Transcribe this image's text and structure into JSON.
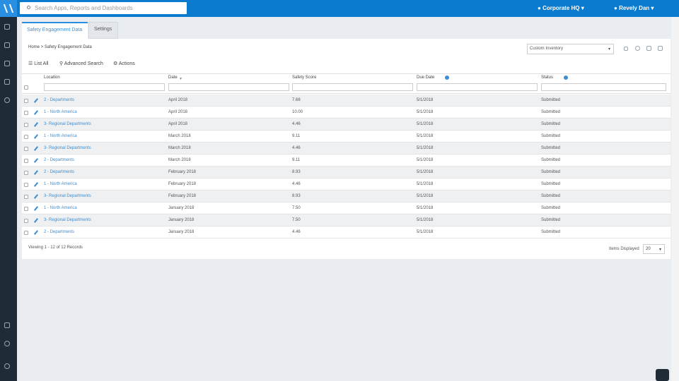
{
  "topbar": {
    "search": "Search Apps, Reports and Dashboards",
    "location": "Corporate HQ",
    "user": "Revely Dan"
  },
  "tabs": [
    "Safety Engagement Data",
    "Settings"
  ],
  "breadcrumb": "Home > Safety Engagement Data",
  "view_select": "Custom Inventory",
  "toolbar": [
    "List All",
    "Advanced Search",
    "Actions"
  ],
  "table": {
    "columns": [
      "Location",
      "Date",
      "Safety Score",
      "Due Date",
      "Status"
    ],
    "rows": [
      [
        "2 - Departments",
        "April 2018",
        "7.68",
        "5/1/2018",
        "Submitted"
      ],
      [
        "1 - North America",
        "April 2018",
        "10.00",
        "5/1/2018",
        "Submitted"
      ],
      [
        "3- Regional Departments",
        "April 2018",
        "4.46",
        "5/1/2018",
        "Submitted"
      ],
      [
        "1 - North America",
        "March 2018",
        "9.11",
        "5/1/2018",
        "Submitted"
      ],
      [
        "3- Regional Departments",
        "March 2018",
        "4.46",
        "5/1/2018",
        "Submitted"
      ],
      [
        "2 - Departments",
        "March 2018",
        "9.11",
        "5/1/2018",
        "Submitted"
      ],
      [
        "2 - Departments",
        "February 2018",
        "8.93",
        "5/1/2018",
        "Submitted"
      ],
      [
        "1 - North America",
        "February 2018",
        "4.46",
        "5/1/2018",
        "Submitted"
      ],
      [
        "3- Regional Departments",
        "February 2018",
        "8.93",
        "5/1/2018",
        "Submitted"
      ],
      [
        "1 - North America",
        "January 2018",
        "7.50",
        "5/1/2018",
        "Submitted"
      ],
      [
        "3- Regional Departments",
        "January 2018",
        "7.50",
        "5/1/2018",
        "Submitted"
      ],
      [
        "2 - Departments",
        "January 2018",
        "4.46",
        "5/1/2018",
        "Submitted"
      ]
    ]
  },
  "footer": {
    "records": "Viewing 1 - 12 of 12 Records",
    "items_label": "Items Displayed",
    "items_value": "20"
  }
}
